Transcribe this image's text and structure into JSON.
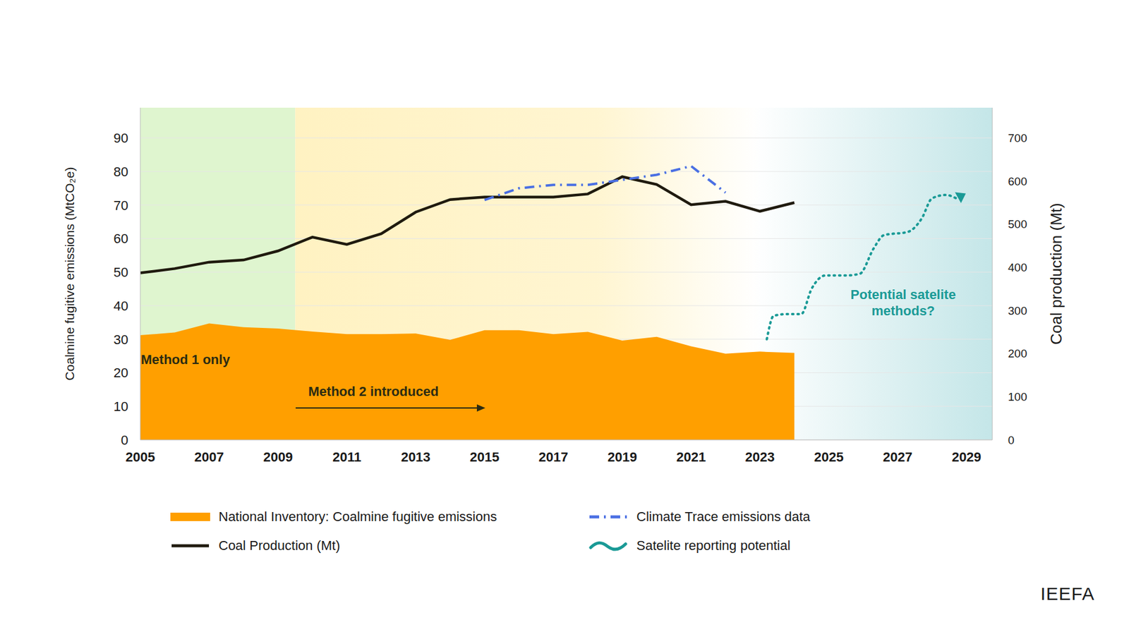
{
  "chart_data": {
    "type": "line",
    "source": "IEEFA",
    "ylabel": "Coalmine fugitive emissions (MtCO₂e)",
    "y2label": "Coal production (Mt)",
    "x": [
      2005,
      2006,
      2007,
      2008,
      2009,
      2010,
      2011,
      2012,
      2013,
      2014,
      2015,
      2016,
      2017,
      2018,
      2019,
      2020,
      2021,
      2022,
      2023,
      2024
    ],
    "xlim": [
      2005,
      2029.75
    ],
    "xticks": [
      2005,
      2007,
      2009,
      2011,
      2013,
      2015,
      2017,
      2019,
      2021,
      2023,
      2025,
      2027,
      2029
    ],
    "ylim": [
      0,
      99
    ],
    "yticks": [
      0,
      10,
      20,
      30,
      40,
      50,
      60,
      70,
      80,
      90
    ],
    "y2lim": [
      0,
      770
    ],
    "y2ticks": [
      0,
      100,
      200,
      300,
      400,
      500,
      600,
      700
    ],
    "grid": true,
    "series": [
      {
        "name": "National Inventory: Coalmine fugitive emissions",
        "type": "area",
        "color": "#ff9f00",
        "values": [
          31.2,
          32,
          34.7,
          33.6,
          33.2,
          32.3,
          31.5,
          31.5,
          31.7,
          29.8,
          32.7,
          32.7,
          31.5,
          32.2,
          29.6,
          30.7,
          27.9,
          25.7,
          26.3,
          25.9
        ]
      },
      {
        "name": "Coal Production (Mt)",
        "type": "line",
        "color": "#1f1a0e",
        "axis": "y2",
        "values": [
          387,
          397,
          412,
          417,
          438,
          470,
          453,
          478,
          528,
          557,
          563,
          563,
          563,
          570,
          610,
          592,
          545,
          553,
          530,
          550
        ]
      },
      {
        "name": "Climate Trace emissions data",
        "type": "line",
        "line_style": "dashdot",
        "color": "#4a6fe3",
        "values": [
          null,
          null,
          null,
          null,
          null,
          null,
          null,
          null,
          null,
          null,
          71.5,
          75,
          76,
          76,
          77.5,
          79,
          81.6,
          73.7,
          null,
          null
        ]
      },
      {
        "name": "Satelite reporting potential",
        "type": "line",
        "line_style": "dotted",
        "marker": "arrow",
        "color": "#1a9a96",
        "x": [
          2023.2,
          2023.4,
          2023.8,
          2024.2,
          2024.5,
          2024.9,
          2025.5,
          2025.9,
          2026.3,
          2026.6,
          2027.3,
          2027.7,
          2028,
          2028.4,
          2028.7
        ],
        "values": [
          30,
          37,
          37.5,
          37.5,
          45,
          49,
          49,
          49.5,
          57,
          61,
          62,
          66,
          72,
          73,
          72
        ]
      }
    ],
    "annotations": [
      {
        "text": "Method 1 only"
      },
      {
        "text": "Method 2 introduced"
      },
      {
        "text": "Potential satelite methods?"
      }
    ],
    "shaded_regions": [
      {
        "from": 2005,
        "to": 2009.5,
        "color": "#dff5cf"
      },
      {
        "from": 2009.5,
        "to": 2023,
        "color": "#fff2c2"
      },
      {
        "from": 2022.8,
        "to": 2029.75,
        "color": "#c4e6e8"
      }
    ]
  }
}
